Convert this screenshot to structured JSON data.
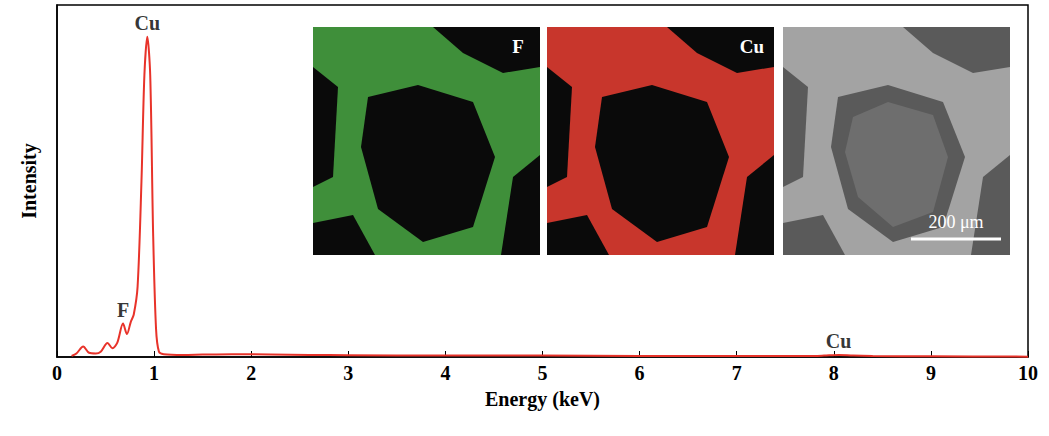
{
  "chart_data": {
    "type": "line",
    "x_label": "Energy (keV)",
    "y_label": "Intensity",
    "xlim": [
      0,
      10
    ],
    "xticks": [
      0,
      1,
      2,
      3,
      4,
      5,
      6,
      7,
      8,
      9,
      10
    ],
    "ylim": [
      0,
      100
    ],
    "tick_labels": "x",
    "grid": false,
    "color": "#e8332a",
    "x": [
      0.15,
      0.2,
      0.27,
      0.33,
      0.4,
      0.45,
      0.52,
      0.57,
      0.62,
      0.68,
      0.72,
      0.76,
      0.79,
      0.83,
      0.87,
      0.9,
      0.93,
      0.96,
      0.99,
      1.02,
      1.05,
      1.1,
      1.3,
      1.5,
      1.8,
      2.2,
      2.6,
      3,
      4,
      5,
      6,
      7,
      7.8,
      7.9,
      8.05,
      8.2,
      8.4,
      9,
      10
    ],
    "values": [
      0.3,
      1,
      3,
      1.2,
      1,
      1.5,
      4,
      2.5,
      4,
      9.5,
      6.5,
      10,
      12,
      20,
      50,
      80,
      91,
      80,
      35,
      8,
      1.5,
      0.8,
      0.6,
      0.7,
      0.8,
      0.7,
      0.6,
      0.5,
      0.4,
      0.4,
      0.3,
      0.3,
      0.3,
      0.4,
      0.6,
      0.4,
      0.3,
      0.2,
      0.1
    ],
    "annotations": [
      {
        "text": "Cu",
        "x": 0.93,
        "y": 91
      },
      {
        "text": "F",
        "x": 0.68,
        "y": 9.5
      },
      {
        "text": "Cu",
        "x": 8.05,
        "y": 0.6
      }
    ],
    "insets": {
      "maps": [
        {
          "element": "F",
          "color": "#3f8f3a"
        },
        {
          "element": "Cu",
          "color": "#c8362c"
        }
      ],
      "sem_image": {
        "scale_bar": "200 μm",
        "color": "#a3a3a3"
      }
    }
  }
}
